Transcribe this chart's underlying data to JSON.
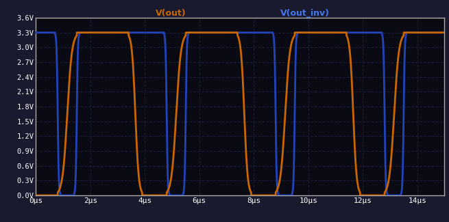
{
  "bg_color": "#1a1a2e",
  "plot_bg_color": "#0a0a14",
  "grid_color": "#1e1e3a",
  "orange_color": "#cc6600",
  "blue_color": "#2244bb",
  "orange_label": "V(out)",
  "blue_label": "V(out_inv)",
  "ylim": [
    0.0,
    3.6
  ],
  "xlim": [
    0,
    15000
  ],
  "yticks": [
    0.0,
    0.3,
    0.6,
    0.9,
    1.2,
    1.5,
    1.8,
    2.1,
    2.4,
    2.7,
    3.0,
    3.3,
    3.6
  ],
  "xticks": [
    0,
    2000,
    4000,
    6000,
    8000,
    10000,
    12000,
    14000
  ],
  "xtick_labels": [
    "0μs",
    "2μs",
    "4μs",
    "6μs",
    "8μs",
    "10μs",
    "12μs",
    "14μs"
  ],
  "ytick_labels": [
    "0.0V",
    "0.3V",
    "0.6V",
    "0.9V",
    "1.2V",
    "1.5V",
    "1.8V",
    "2.1V",
    "2.4V",
    "2.7V",
    "3.0V",
    "3.3V",
    "3.6V"
  ],
  "vhigh": 3.3,
  "vlow": 0.0,
  "period": 4000,
  "orange_rise_start": 800,
  "orange_rise_end": 1500,
  "orange_fall_start": 3400,
  "orange_fall_end": 3900,
  "blue_fall_start": 700,
  "blue_fall_end": 900,
  "blue_rise_start": 1400,
  "blue_rise_end": 1600
}
